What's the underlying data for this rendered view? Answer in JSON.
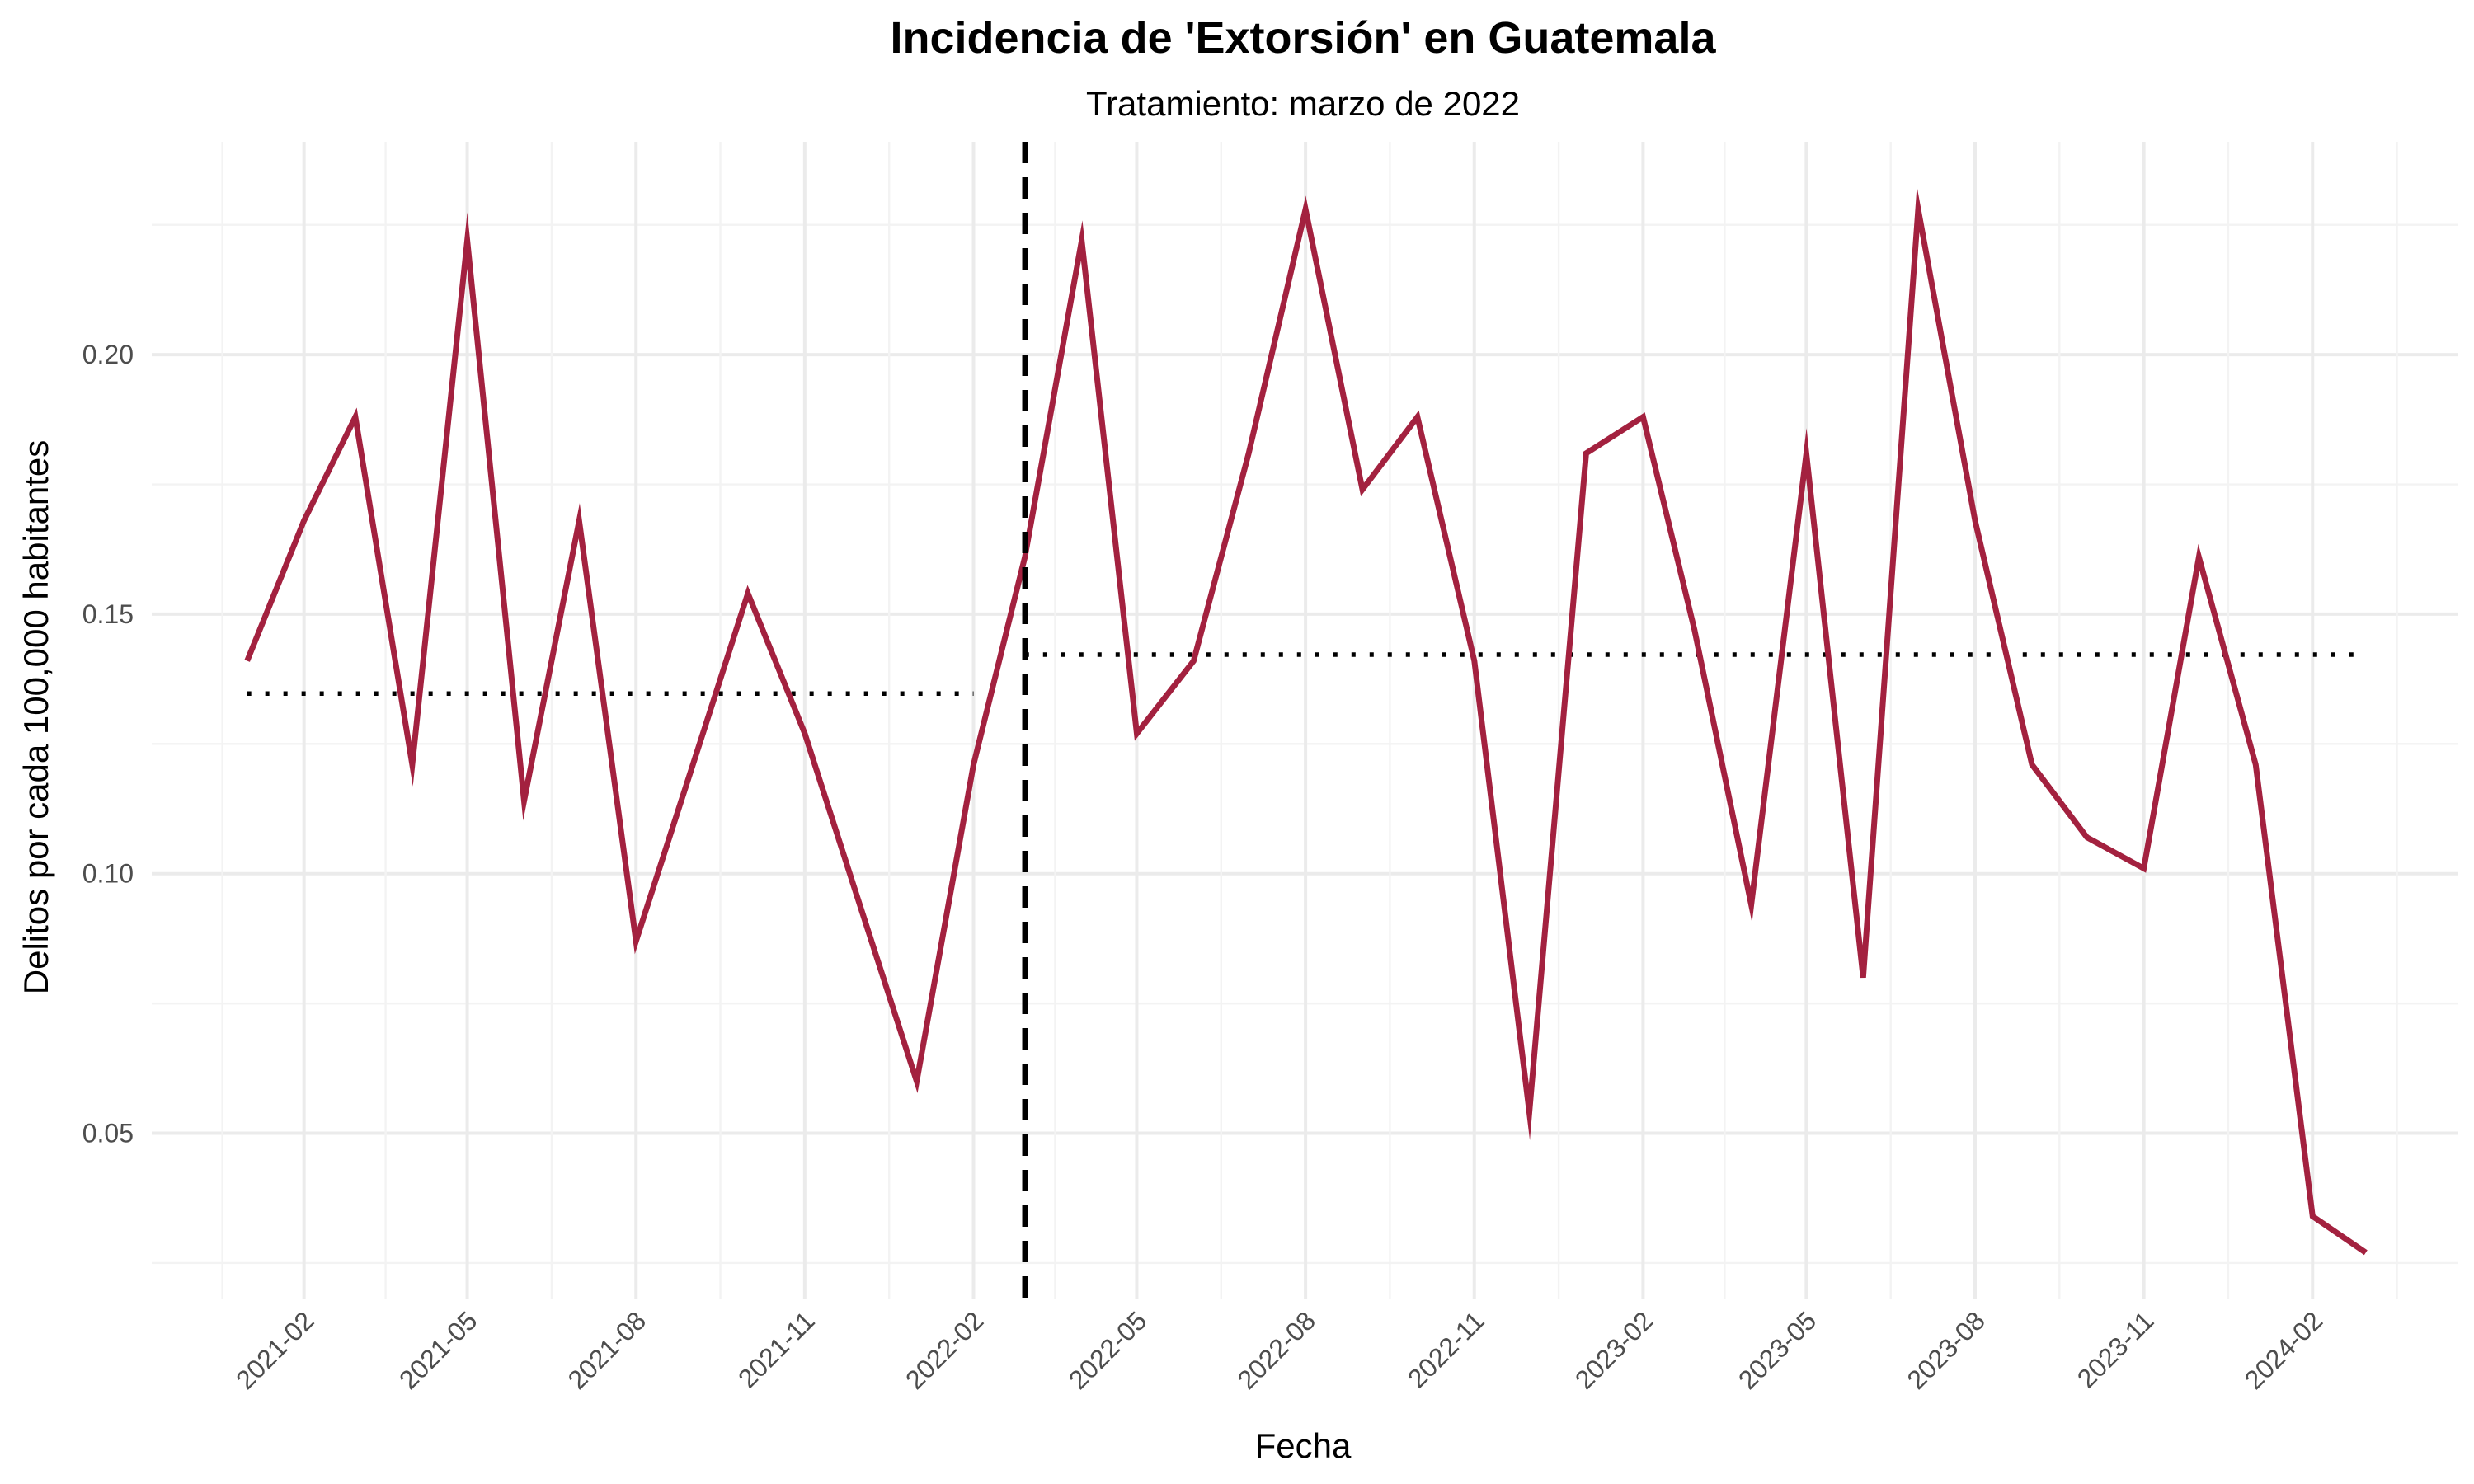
{
  "chart_data": {
    "type": "line",
    "title": "Incidencia de 'Extorsión' en Guatemala",
    "subtitle": "Tratamiento: marzo de 2022",
    "xlabel": "Fecha",
    "ylabel": "Delitos por cada 100,000 habitantes",
    "x_ticks": [
      "2021-02",
      "2021-05",
      "2021-08",
      "2021-11",
      "2022-02",
      "2022-05",
      "2022-08",
      "2022-11",
      "2023-02",
      "2023-05",
      "2023-08",
      "2023-11",
      "2024-02"
    ],
    "y_ticks": [
      "0.05",
      "0.10",
      "0.15",
      "0.20"
    ],
    "ylim": [
      0.018,
      0.241
    ],
    "xlim": [
      "2020-11-10",
      "2024-04-20"
    ],
    "grid": true,
    "series": [
      {
        "color": "#A3213F",
        "x": [
          "2021-01",
          "2021-02",
          "2021-03",
          "2021-04",
          "2021-05",
          "2021-06",
          "2021-07",
          "2021-08",
          "2021-09",
          "2021-10",
          "2021-11",
          "2021-12",
          "2022-01",
          "2022-02",
          "2022-03",
          "2022-04",
          "2022-05",
          "2022-06",
          "2022-07",
          "2022-08",
          "2022-09",
          "2022-10",
          "2022-11",
          "2022-12",
          "2023-01",
          "2023-02",
          "2023-03",
          "2023-04",
          "2023-05",
          "2023-06",
          "2023-07",
          "2023-08",
          "2023-09",
          "2023-10",
          "2023-11",
          "2023-12",
          "2024-01",
          "2024-02",
          "2024-03"
        ],
        "values": [
          0.141,
          0.168,
          0.188,
          0.121,
          0.222,
          0.114,
          0.168,
          0.087,
          0.121,
          0.154,
          0.127,
          0.094,
          0.06,
          0.121,
          0.161,
          0.222,
          0.127,
          0.141,
          0.181,
          0.228,
          0.174,
          0.188,
          0.141,
          0.054,
          0.181,
          0.188,
          0.147,
          0.094,
          0.181,
          0.08,
          0.228,
          0.168,
          0.121,
          0.107,
          0.101,
          0.161,
          0.121,
          0.034,
          0.027
        ]
      }
    ],
    "treatment_date": "2022-03-01",
    "pre_mean": {
      "from": "2021-01",
      "to": "2022-02",
      "value": 0.1347
    },
    "post_mean": {
      "from": "2022-03",
      "to": "2024-03",
      "value": 0.1422
    },
    "colors": {
      "line": "#A3213F",
      "reference": "#000000",
      "grid": "#ebebeb",
      "tick_text": "#4d4d4d"
    }
  }
}
